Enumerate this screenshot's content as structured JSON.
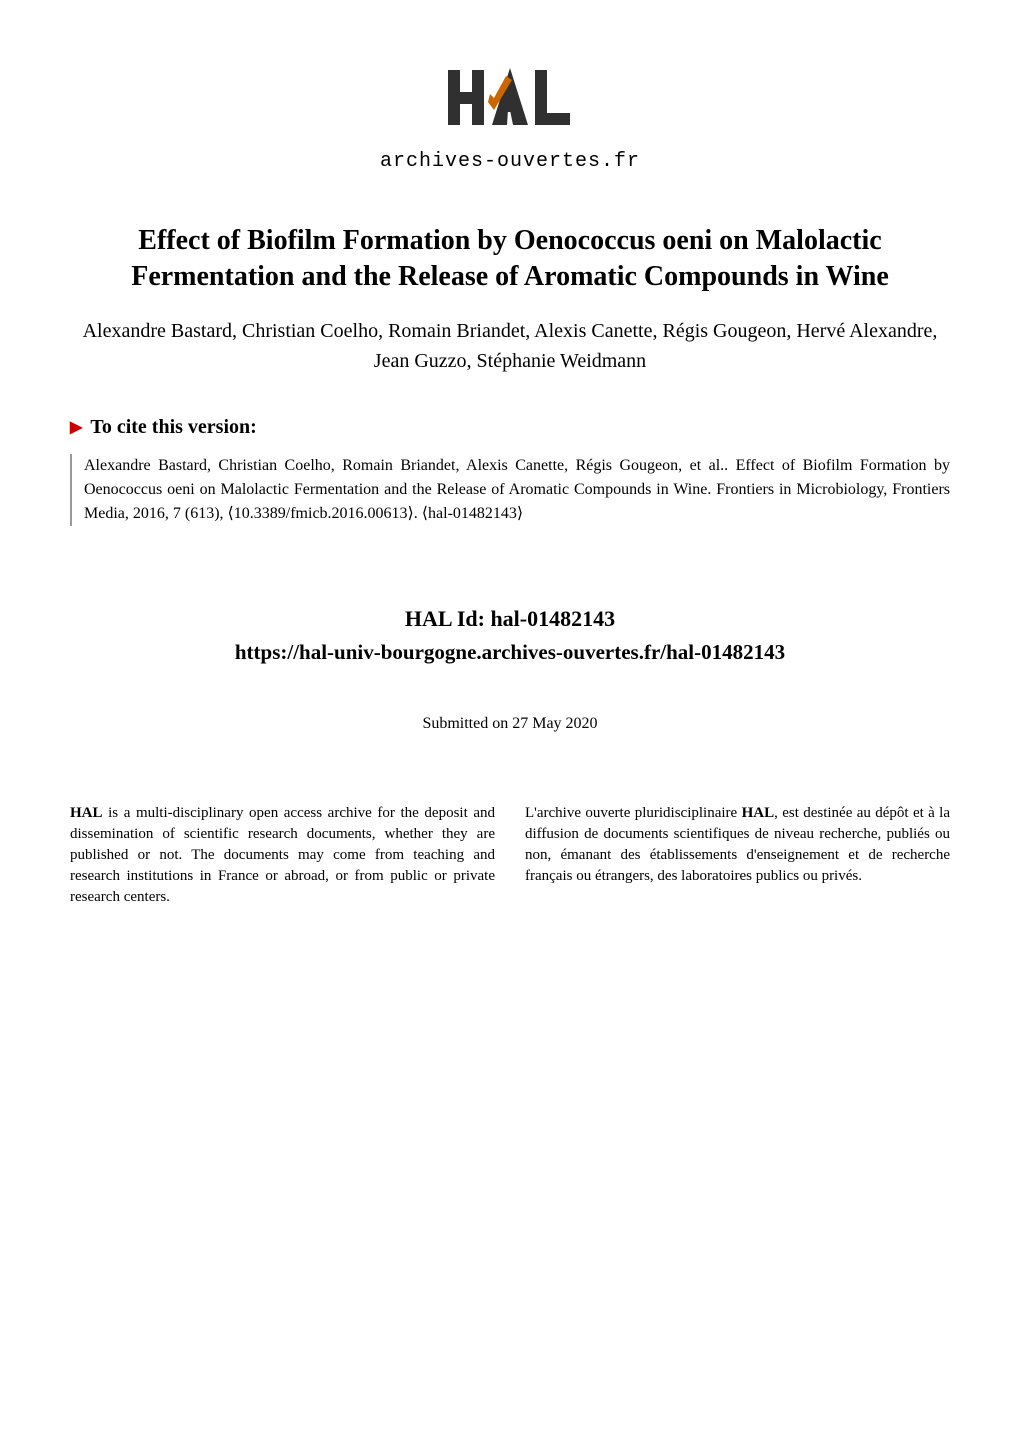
{
  "logo": {
    "text": "HAL",
    "subtitle": "archives-ouvertes.fr",
    "h_color": "#303030",
    "a_color": "#303030",
    "l_color": "#303030",
    "check_color": "#cc6600"
  },
  "title": "Effect of Biofilm Formation by Oenococcus oeni on Malolactic Fermentation and the Release of Aromatic Compounds in Wine",
  "authors": "Alexandre Bastard, Christian Coelho, Romain Briandet, Alexis Canette, Régis Gougeon, Hervé Alexandre, Jean Guzzo, Stéphanie Weidmann",
  "cite_header": "To cite this version:",
  "citation": "Alexandre Bastard, Christian Coelho, Romain Briandet, Alexis Canette, Régis Gougeon, et al.. Effect of Biofilm Formation by Oenococcus oeni on Malolactic Fermentation and the Release of Aromatic Compounds in Wine.  Frontiers in Microbiology, Frontiers Media, 2016, 7 (613), ⟨10.3389/fmicb.2016.00613⟩. ⟨hal-01482143⟩",
  "hal_id_label": "HAL Id: hal-01482143",
  "hal_url": "https://hal-univ-bourgogne.archives-ouvertes.fr/hal-01482143",
  "submitted": "Submitted on 27 May 2020",
  "footer_left_html": "<b>HAL</b> is a multi-disciplinary open access archive for the deposit and dissemination of scientific research documents, whether they are published or not. The documents may come from teaching and research institutions in France or abroad, or from public or private research centers.",
  "footer_right_html": "L'archive ouverte pluridisciplinaire <b>HAL</b>, est destinée au dépôt et à la diffusion de documents scientifiques de niveau recherche, publiés ou non, émanant des établissements d'enseignement et de recherche français ou étrangers, des laboratoires publics ou privés.",
  "arrow_color": "#cc0000",
  "background_color": "#ffffff",
  "text_color": "#000000"
}
